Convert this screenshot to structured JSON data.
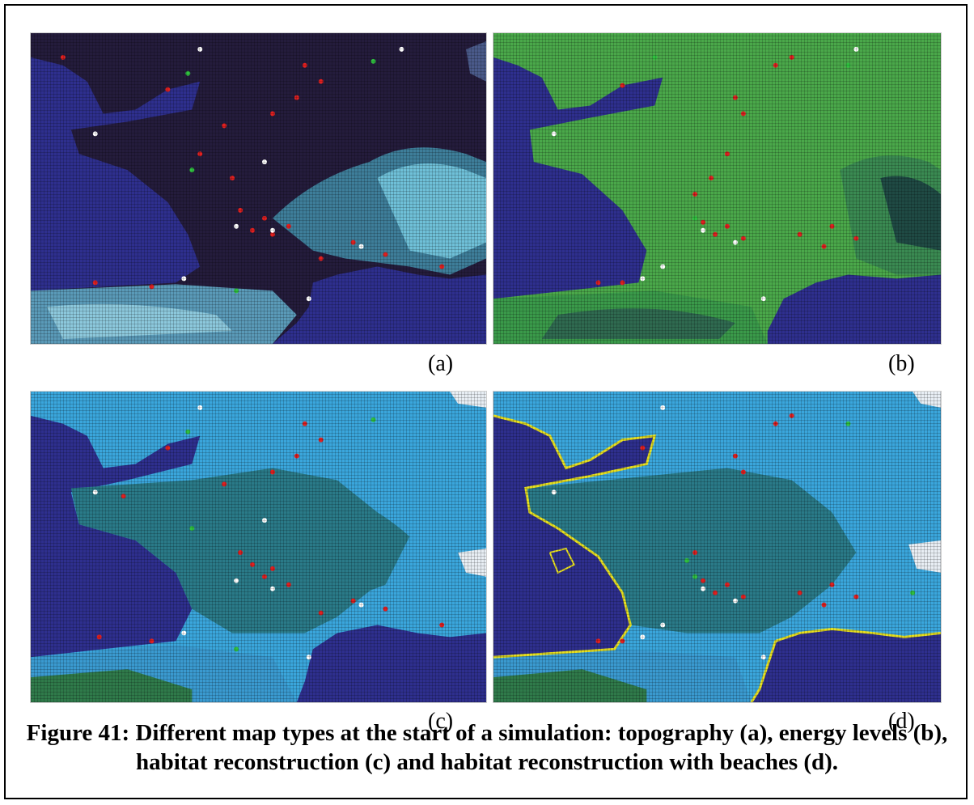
{
  "panels": [
    {
      "id": "a",
      "label": "(a)",
      "map_type": "topography"
    },
    {
      "id": "b",
      "label": "(b)",
      "map_type": "energy levels"
    },
    {
      "id": "c",
      "label": "(c)",
      "map_type": "habitat reconstruction"
    },
    {
      "id": "d",
      "label": "(d)",
      "map_type": "habitat reconstruction with beaches"
    }
  ],
  "caption": "Figure 41: Different map types at the start of a simulation: topography (a), energy levels (b), habitat reconstruction (c) and habitat reconstruction with beaches (d).",
  "colors": {
    "sea": "#2e2f8e",
    "land_topography": "#241c3c",
    "mountain_topography": "#5fb0c8",
    "land_energy": "#4aa84a",
    "highland_energy": "#2f6a50",
    "land_habitat": "#2a7a88",
    "ice_habitat": "#3aa6dc",
    "beach": "#e8e020",
    "agent_red": "#e02020",
    "agent_white": "#ffffff",
    "agent_green": "#30c040"
  }
}
